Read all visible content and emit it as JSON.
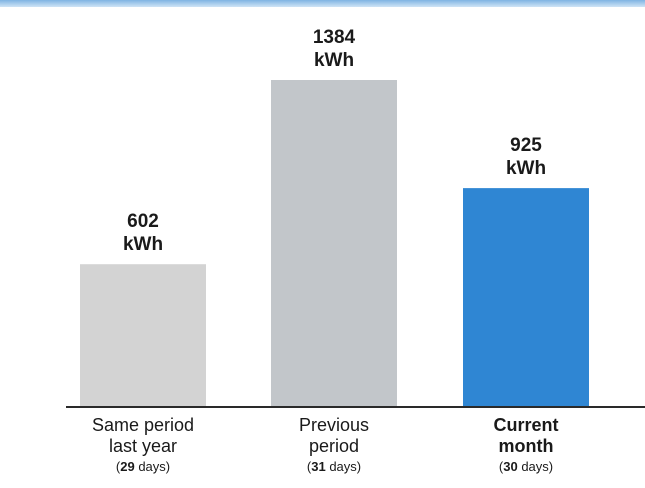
{
  "chart_data": {
    "type": "bar",
    "categories": [
      {
        "lines": [
          "Same period",
          "last year"
        ],
        "days_prefix": "(",
        "days_number": "29",
        "days_suffix": " days)",
        "emphasis": false
      },
      {
        "lines": [
          "Previous",
          "period"
        ],
        "days_prefix": "(",
        "days_number": "31",
        "days_suffix": " days)",
        "emphasis": false
      },
      {
        "lines": [
          "Current",
          "month"
        ],
        "days_prefix": "(",
        "days_number": "30",
        "days_suffix": " days)",
        "emphasis": true
      }
    ],
    "values": [
      602,
      1384,
      925
    ],
    "value_labels": [
      [
        "602",
        "kWh"
      ],
      [
        "1384",
        "kWh"
      ],
      [
        "925",
        "kWh"
      ]
    ],
    "unit": "kWh",
    "bar_colors": [
      "#d3d3d3",
      "#c2c6ca",
      "#2f86d3"
    ],
    "baseline_color": "#2a2a2a",
    "ylim": [
      0,
      1384
    ],
    "grid": false,
    "title": "",
    "xlabel": "",
    "ylabel": ""
  }
}
